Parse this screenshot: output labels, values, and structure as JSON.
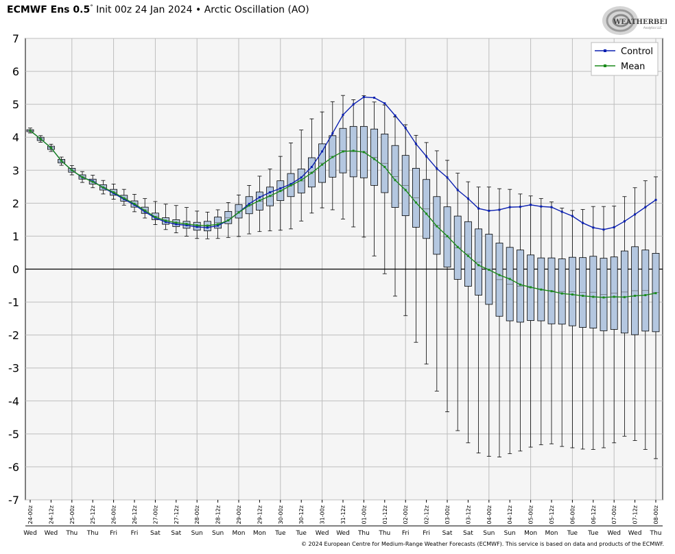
{
  "header": {
    "model": "ECMWF Ens 0.5",
    "degree": "°",
    "init": "Init 00z 24 Jan 2024",
    "sep": "•",
    "variable": "Arctic Oscillation (AO)"
  },
  "logo": {
    "text": "WEATHERBELL",
    "sub": "Analytics LLC"
  },
  "footer": {
    "copyright": "© 2024 European Centre for Medium-Range Weather Forecasts (ECMWF). This service is based on data and products of the ECMWF."
  },
  "colors": {
    "control": "#0a1fb0",
    "mean": "#1a8a1a",
    "box": "#b4c7e0",
    "plot_bg": "#f5f5f5",
    "grid": "#bdbdbd"
  },
  "chart_data": {
    "type": "box-line",
    "ylim": [
      -7,
      7
    ],
    "yticks": [
      7,
      6,
      5,
      4,
      3,
      2,
      1,
      0,
      -1,
      -2,
      -3,
      -4,
      -5,
      -6,
      -7
    ],
    "legend": {
      "position": "top-right",
      "entries": [
        "Control",
        "Mean"
      ]
    },
    "x_labels": [
      "24-00z",
      "24-12z",
      "25-00z",
      "25-12z",
      "26-00z",
      "26-12z",
      "27-00z",
      "27-12z",
      "28-00z",
      "28-12z",
      "29-00z",
      "29-12z",
      "30-00z",
      "30-12z",
      "31-00z",
      "31-12z",
      "01-00z",
      "01-12z",
      "02-00z",
      "02-12z",
      "03-00z",
      "03-12z",
      "04-00z",
      "04-12z",
      "05-00z",
      "05-12z",
      "06-00z",
      "06-12z",
      "07-00z",
      "07-12z",
      "08-00z"
    ],
    "day_labels": [
      "Wed",
      "Wed",
      "Thu",
      "Thu",
      "Fri",
      "Fri",
      "Sat",
      "Sat",
      "Sun",
      "Sun",
      "Mon",
      "Mon",
      "Tue",
      "Tue",
      "Wed",
      "Wed",
      "Thu",
      "Thu",
      "Fri",
      "Fri",
      "Sat",
      "Sat",
      "Sun",
      "Sun",
      "Mon",
      "Mon",
      "Tue",
      "Tue",
      "Wed",
      "Wed",
      "Thu"
    ],
    "series": [
      {
        "name": "Control",
        "values": [
          4.2,
          3.95,
          3.68,
          3.28,
          3.0,
          2.78,
          2.67,
          2.47,
          2.3,
          2.12,
          1.95,
          1.74,
          1.55,
          1.43,
          1.36,
          1.33,
          1.28,
          1.26,
          1.32,
          1.48,
          1.72,
          1.98,
          2.18,
          2.33,
          2.45,
          2.58,
          2.78,
          3.1,
          3.57,
          4.12,
          4.68,
          5.0,
          5.22,
          5.2,
          5.03,
          4.66,
          4.28,
          3.8,
          3.42,
          3.05,
          2.78,
          2.4,
          2.14,
          1.84,
          1.77,
          1.8,
          1.88,
          1.89,
          1.95,
          1.9,
          1.88,
          1.74,
          1.61,
          1.4,
          1.26,
          1.2,
          1.27,
          1.45,
          1.66,
          1.88,
          2.1
        ]
      },
      {
        "name": "Mean",
        "values": [
          4.2,
          3.95,
          3.68,
          3.28,
          3.0,
          2.79,
          2.65,
          2.48,
          2.33,
          2.15,
          1.98,
          1.78,
          1.58,
          1.47,
          1.41,
          1.37,
          1.33,
          1.32,
          1.36,
          1.48,
          1.72,
          1.93,
          2.08,
          2.22,
          2.37,
          2.54,
          2.7,
          2.92,
          3.17,
          3.4,
          3.57,
          3.59,
          3.55,
          3.34,
          3.1,
          2.7,
          2.4,
          2.02,
          1.68,
          1.3,
          1.0,
          0.67,
          0.4,
          0.12,
          -0.02,
          -0.18,
          -0.3,
          -0.47,
          -0.55,
          -0.62,
          -0.67,
          -0.74,
          -0.77,
          -0.81,
          -0.84,
          -0.86,
          -0.84,
          -0.85,
          -0.81,
          -0.79,
          -0.73
        ]
      }
    ],
    "boxes": [
      {
        "q1": 4.17,
        "q3": 4.23,
        "lo": 4.13,
        "hi": 4.28
      },
      {
        "q1": 3.9,
        "q3": 4.0,
        "lo": 3.85,
        "hi": 4.05
      },
      {
        "q1": 3.63,
        "q3": 3.73,
        "lo": 3.57,
        "hi": 3.79
      },
      {
        "q1": 3.22,
        "q3": 3.33,
        "lo": 3.15,
        "hi": 3.4
      },
      {
        "q1": 2.94,
        "q3": 3.06,
        "lo": 2.86,
        "hi": 3.14
      },
      {
        "q1": 2.73,
        "q3": 2.86,
        "lo": 2.63,
        "hi": 2.96
      },
      {
        "q1": 2.58,
        "q3": 2.73,
        "lo": 2.47,
        "hi": 2.85
      },
      {
        "q1": 2.4,
        "q3": 2.56,
        "lo": 2.28,
        "hi": 2.69
      },
      {
        "q1": 2.24,
        "q3": 2.42,
        "lo": 2.12,
        "hi": 2.58
      },
      {
        "q1": 2.06,
        "q3": 2.24,
        "lo": 1.94,
        "hi": 2.42
      },
      {
        "q1": 1.88,
        "q3": 2.07,
        "lo": 1.74,
        "hi": 2.27
      },
      {
        "q1": 1.69,
        "q3": 1.88,
        "lo": 1.55,
        "hi": 2.14
      },
      {
        "q1": 1.5,
        "q3": 1.7,
        "lo": 1.35,
        "hi": 2.05
      },
      {
        "q1": 1.36,
        "q3": 1.56,
        "lo": 1.2,
        "hi": 1.97
      },
      {
        "q1": 1.29,
        "q3": 1.5,
        "lo": 1.1,
        "hi": 1.93
      },
      {
        "q1": 1.24,
        "q3": 1.45,
        "lo": 1.0,
        "hi": 1.87
      },
      {
        "q1": 1.18,
        "q3": 1.42,
        "lo": 0.93,
        "hi": 1.76
      },
      {
        "q1": 1.16,
        "q3": 1.45,
        "lo": 0.92,
        "hi": 1.73
      },
      {
        "q1": 1.24,
        "q3": 1.58,
        "lo": 0.93,
        "hi": 1.8
      },
      {
        "q1": 1.38,
        "q3": 1.75,
        "lo": 0.96,
        "hi": 2.02
      },
      {
        "q1": 1.55,
        "q3": 1.96,
        "lo": 0.99,
        "hi": 2.25
      },
      {
        "q1": 1.68,
        "q3": 2.2,
        "lo": 1.07,
        "hi": 2.54
      },
      {
        "q1": 1.79,
        "q3": 2.34,
        "lo": 1.14,
        "hi": 2.82
      },
      {
        "q1": 1.92,
        "q3": 2.49,
        "lo": 1.16,
        "hi": 3.04
      },
      {
        "q1": 2.08,
        "q3": 2.68,
        "lo": 1.18,
        "hi": 3.42
      },
      {
        "q1": 2.2,
        "q3": 2.9,
        "lo": 1.22,
        "hi": 3.83
      },
      {
        "q1": 2.31,
        "q3": 3.04,
        "lo": 1.46,
        "hi": 4.22
      },
      {
        "q1": 2.49,
        "q3": 3.38,
        "lo": 1.7,
        "hi": 4.56
      },
      {
        "q1": 2.63,
        "q3": 3.8,
        "lo": 1.86,
        "hi": 4.77
      },
      {
        "q1": 2.79,
        "q3": 4.05,
        "lo": 1.8,
        "hi": 5.08
      },
      {
        "q1": 2.92,
        "q3": 4.27,
        "lo": 1.52,
        "hi": 5.27
      },
      {
        "q1": 2.8,
        "q3": 4.33,
        "lo": 1.28,
        "hi": 5.14
      },
      {
        "q1": 2.77,
        "q3": 4.33,
        "lo": 0.97,
        "hi": 5.26
      },
      {
        "q1": 2.54,
        "q3": 4.25,
        "lo": 0.4,
        "hi": 5.07
      },
      {
        "q1": 2.32,
        "q3": 4.1,
        "lo": -0.14,
        "hi": 4.98
      },
      {
        "q1": 1.87,
        "q3": 3.75,
        "lo": -0.82,
        "hi": 4.62
      },
      {
        "q1": 1.62,
        "q3": 3.45,
        "lo": -1.41,
        "hi": 4.38
      },
      {
        "q1": 1.27,
        "q3": 3.06,
        "lo": -2.22,
        "hi": 4.06
      },
      {
        "q1": 0.93,
        "q3": 2.72,
        "lo": -2.88,
        "hi": 3.84
      },
      {
        "q1": 0.45,
        "q3": 2.2,
        "lo": -3.7,
        "hi": 3.59
      },
      {
        "q1": 0.06,
        "q3": 1.89,
        "lo": -4.33,
        "hi": 3.3
      },
      {
        "q1": -0.31,
        "q3": 1.61,
        "lo": -4.9,
        "hi": 2.91
      },
      {
        "q1": -0.52,
        "q3": 1.44,
        "lo": -5.27,
        "hi": 2.65
      },
      {
        "q1": -0.79,
        "q3": 1.22,
        "lo": -5.58,
        "hi": 2.49
      },
      {
        "q1": -1.07,
        "q3": 1.06,
        "lo": -5.68,
        "hi": 2.49
      },
      {
        "q1": -1.43,
        "q3": 0.79,
        "lo": -5.7,
        "hi": 2.44
      },
      {
        "q1": -1.57,
        "q3": 0.66,
        "lo": -5.6,
        "hi": 2.42
      },
      {
        "q1": -1.61,
        "q3": 0.58,
        "lo": -5.52,
        "hi": 2.28
      },
      {
        "q1": -1.56,
        "q3": 0.43,
        "lo": -5.4,
        "hi": 2.22
      },
      {
        "q1": -1.57,
        "q3": 0.34,
        "lo": -5.33,
        "hi": 2.14
      },
      {
        "q1": -1.66,
        "q3": 0.34,
        "lo": -5.3,
        "hi": 2.04
      },
      {
        "q1": -1.67,
        "q3": 0.31,
        "lo": -5.38,
        "hi": 1.85
      },
      {
        "q1": -1.72,
        "q3": 0.36,
        "lo": -5.42,
        "hi": 1.78
      },
      {
        "q1": -1.77,
        "q3": 0.35,
        "lo": -5.46,
        "hi": 1.81
      },
      {
        "q1": -1.79,
        "q3": 0.39,
        "lo": -5.47,
        "hi": 1.9
      },
      {
        "q1": -1.87,
        "q3": 0.33,
        "lo": -5.42,
        "hi": 1.9
      },
      {
        "q1": -1.83,
        "q3": 0.37,
        "lo": -5.27,
        "hi": 1.91
      },
      {
        "q1": -1.94,
        "q3": 0.55,
        "lo": -5.07,
        "hi": 2.2
      },
      {
        "q1": -1.99,
        "q3": 0.68,
        "lo": -5.2,
        "hi": 2.47
      },
      {
        "q1": -1.88,
        "q3": 0.58,
        "lo": -5.47,
        "hi": 2.68
      },
      {
        "q1": -1.9,
        "q3": 0.48,
        "lo": -5.75,
        "hi": 2.8
      }
    ]
  }
}
